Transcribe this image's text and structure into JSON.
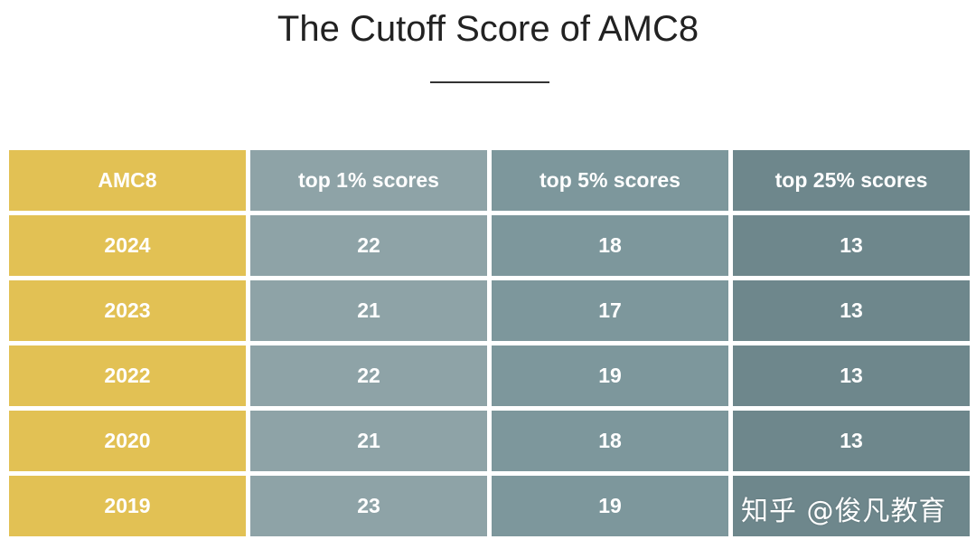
{
  "title": "The Cutoff Score of AMC8",
  "watermark": "知乎 @俊凡教育",
  "colors": {
    "label_column": "#e2c154",
    "top1_column": "#8ea3a7",
    "top5_column": "#7d979c",
    "top25_column": "#6e878c",
    "text": "#ffffff"
  },
  "chart_data": {
    "type": "table",
    "title": "The Cutoff Score of AMC8",
    "columns": [
      "AMC8",
      "top 1% scores",
      "top 5% scores",
      "top 25% scores"
    ],
    "rows": [
      [
        "2024",
        "22",
        "18",
        "13"
      ],
      [
        "2023",
        "21",
        "17",
        "13"
      ],
      [
        "2022",
        "22",
        "19",
        "13"
      ],
      [
        "2020",
        "21",
        "18",
        "13"
      ],
      [
        "2019",
        "23",
        "19",
        ""
      ]
    ]
  }
}
